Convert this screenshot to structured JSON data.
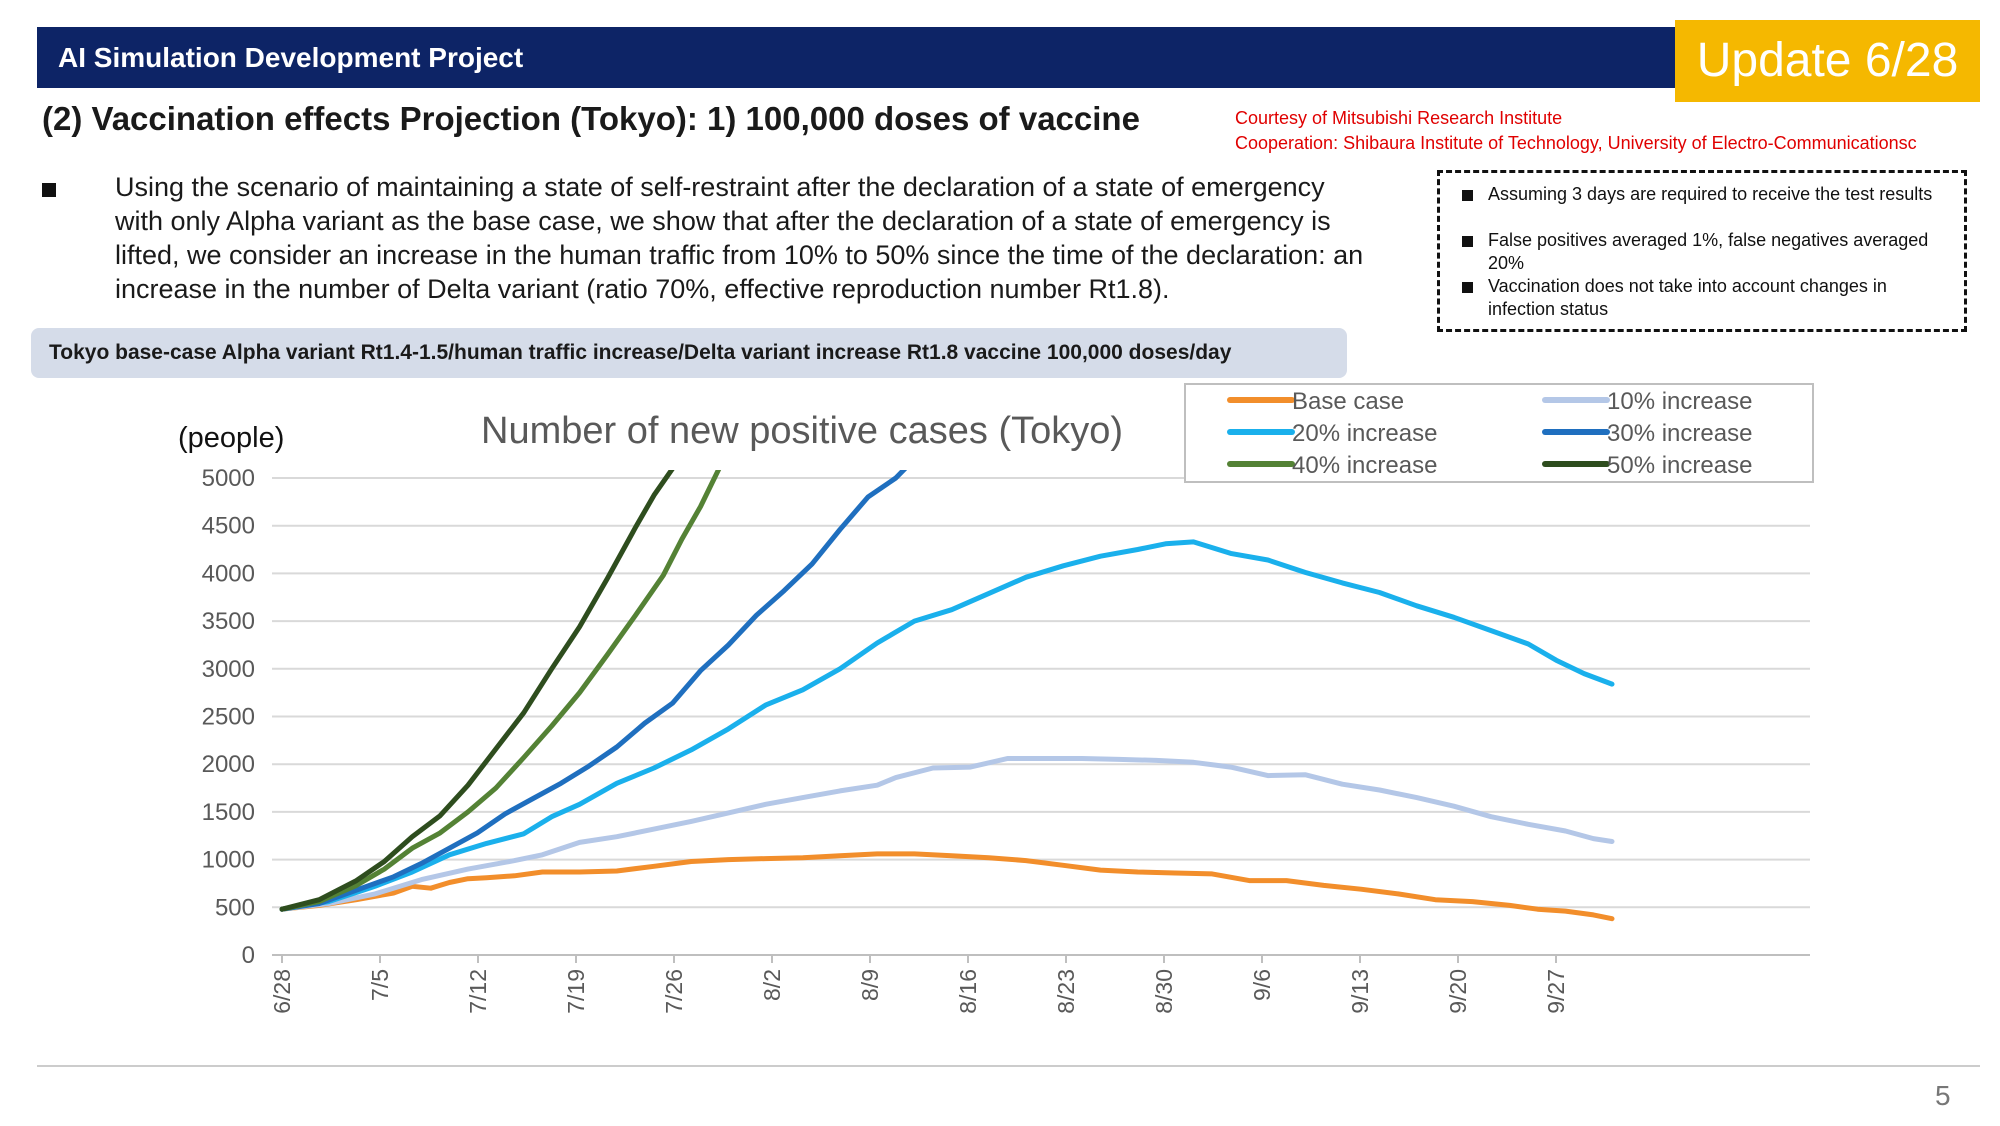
{
  "header": {
    "title": "AI Simulation Development Project",
    "update_badge": "Update 6/28"
  },
  "subtitle": "(2) Vaccination effects Projection (Tokyo): 1) 100,000 doses of vaccine",
  "credits": {
    "line1": "Courtesy of Mitsubishi Research Institute",
    "line2": "Cooperation: Shibaura Institute of Technology, University of Electro-Communicationsc"
  },
  "description": "Using the scenario of maintaining a state of self-restraint after the declaration of a state of emergency with only Alpha variant as the base case, we show that after the declaration of a state of emergency is lifted, we consider an increase in the human traffic from 10% to 50% since the time of the declaration: an increase in the number of Delta variant (ratio 70%, effective reproduction number Rt1.8).",
  "notes": [
    "Assuming 3 days are required to receive the test results",
    "False positives averaged 1%, false negatives averaged 20%",
    "Vaccination does not take into account changes in infection status"
  ],
  "scenario_label": "Tokyo base-case Alpha variant Rt1.4-1.5/human traffic increase/Delta variant increase Rt1.8 vaccine 100,000 doses/day",
  "page_number": "5",
  "chart_data": {
    "type": "line",
    "title": "Number of new positive cases (Tokyo)",
    "ylabel": "(people)",
    "xlabel": "",
    "ylim": [
      0,
      5000
    ],
    "yticks": [
      "0",
      "500",
      "1000",
      "1500",
      "2000",
      "2500",
      "3000",
      "3500",
      "4000",
      "4500",
      "5000"
    ],
    "x_tick_labels": [
      "6/28",
      "7/5",
      "7/12",
      "7/19",
      "7/26",
      "8/2",
      "8/9",
      "8/16",
      "8/23",
      "8/30",
      "9/6",
      "9/13",
      "9/20",
      "9/27"
    ],
    "x_start_day": 0,
    "x_end_day": 95,
    "grid": true,
    "legend_position": "top-right",
    "series": [
      {
        "name": "Base case",
        "color": "#f28e2b",
        "points": [
          [
            0,
            480
          ],
          [
            4,
            520
          ],
          [
            8,
            580
          ],
          [
            12,
            650
          ],
          [
            14,
            720
          ],
          [
            16,
            700
          ],
          [
            18,
            760
          ],
          [
            20,
            800
          ],
          [
            22,
            810
          ],
          [
            25,
            830
          ],
          [
            28,
            870
          ],
          [
            32,
            870
          ],
          [
            36,
            880
          ],
          [
            40,
            930
          ],
          [
            44,
            980
          ],
          [
            48,
            1000
          ],
          [
            52,
            1010
          ],
          [
            56,
            1020
          ],
          [
            60,
            1040
          ],
          [
            64,
            1060
          ],
          [
            68,
            1060
          ],
          [
            72,
            1040
          ],
          [
            76,
            1020
          ],
          [
            80,
            990
          ],
          [
            84,
            940
          ],
          [
            88,
            890
          ],
          [
            92,
            870
          ],
          [
            96,
            860
          ],
          [
            100,
            850
          ],
          [
            104,
            780
          ],
          [
            108,
            780
          ],
          [
            112,
            730
          ],
          [
            116,
            690
          ],
          [
            120,
            640
          ],
          [
            124,
            580
          ],
          [
            128,
            560
          ],
          [
            132,
            520
          ],
          [
            135,
            480
          ],
          [
            138,
            460
          ],
          [
            141,
            420
          ],
          [
            143,
            380
          ]
        ]
      },
      {
        "name": "10% increase",
        "color": "#b4c7e7",
        "points": [
          [
            0,
            480
          ],
          [
            5,
            540
          ],
          [
            10,
            640
          ],
          [
            15,
            790
          ],
          [
            20,
            900
          ],
          [
            25,
            990
          ],
          [
            28,
            1050
          ],
          [
            32,
            1180
          ],
          [
            36,
            1240
          ],
          [
            40,
            1320
          ],
          [
            44,
            1400
          ],
          [
            48,
            1490
          ],
          [
            52,
            1580
          ],
          [
            56,
            1650
          ],
          [
            60,
            1720
          ],
          [
            64,
            1780
          ],
          [
            66,
            1860
          ],
          [
            70,
            1960
          ],
          [
            74,
            1970
          ],
          [
            78,
            2060
          ],
          [
            82,
            2060
          ],
          [
            86,
            2060
          ],
          [
            90,
            2050
          ],
          [
            94,
            2040
          ],
          [
            98,
            2020
          ],
          [
            102,
            1970
          ],
          [
            106,
            1880
          ],
          [
            110,
            1890
          ],
          [
            114,
            1790
          ],
          [
            118,
            1730
          ],
          [
            122,
            1650
          ],
          [
            126,
            1560
          ],
          [
            130,
            1450
          ],
          [
            134,
            1370
          ],
          [
            138,
            1300
          ],
          [
            141,
            1220
          ],
          [
            143,
            1190
          ]
        ]
      },
      {
        "name": "20% increase",
        "color": "#1ab0ec",
        "points": [
          [
            0,
            480
          ],
          [
            5,
            560
          ],
          [
            10,
            720
          ],
          [
            14,
            870
          ],
          [
            18,
            1050
          ],
          [
            22,
            1170
          ],
          [
            26,
            1270
          ],
          [
            29,
            1450
          ],
          [
            32,
            1580
          ],
          [
            36,
            1800
          ],
          [
            40,
            1960
          ],
          [
            44,
            2150
          ],
          [
            48,
            2370
          ],
          [
            52,
            2620
          ],
          [
            56,
            2780
          ],
          [
            60,
            3000
          ],
          [
            64,
            3270
          ],
          [
            68,
            3500
          ],
          [
            72,
            3620
          ],
          [
            76,
            3790
          ],
          [
            80,
            3960
          ],
          [
            84,
            4080
          ],
          [
            88,
            4180
          ],
          [
            92,
            4250
          ],
          [
            95,
            4310
          ],
          [
            98,
            4330
          ],
          [
            102,
            4210
          ],
          [
            106,
            4140
          ],
          [
            110,
            4010
          ],
          [
            114,
            3900
          ],
          [
            118,
            3800
          ],
          [
            122,
            3660
          ],
          [
            126,
            3540
          ],
          [
            130,
            3400
          ],
          [
            134,
            3260
          ],
          [
            137,
            3090
          ],
          [
            140,
            2950
          ],
          [
            143,
            2840
          ]
        ]
      },
      {
        "name": "30% increase",
        "color": "#1f6fbf",
        "points": [
          [
            0,
            480
          ],
          [
            4,
            540
          ],
          [
            8,
            680
          ],
          [
            12,
            820
          ],
          [
            15,
            960
          ],
          [
            18,
            1120
          ],
          [
            21,
            1280
          ],
          [
            24,
            1480
          ],
          [
            27,
            1640
          ],
          [
            30,
            1800
          ],
          [
            33,
            1980
          ],
          [
            36,
            2180
          ],
          [
            39,
            2430
          ],
          [
            42,
            2640
          ],
          [
            45,
            2980
          ],
          [
            48,
            3250
          ],
          [
            51,
            3560
          ],
          [
            54,
            3820
          ],
          [
            57,
            4100
          ],
          [
            60,
            4460
          ],
          [
            63,
            4800
          ],
          [
            66,
            5000
          ],
          [
            67,
            5100
          ]
        ]
      },
      {
        "name": "40% increase",
        "color": "#548235",
        "points": [
          [
            0,
            480
          ],
          [
            4,
            560
          ],
          [
            8,
            730
          ],
          [
            11,
            900
          ],
          [
            14,
            1120
          ],
          [
            17,
            1280
          ],
          [
            20,
            1500
          ],
          [
            23,
            1750
          ],
          [
            26,
            2070
          ],
          [
            29,
            2400
          ],
          [
            32,
            2750
          ],
          [
            35,
            3150
          ],
          [
            38,
            3560
          ],
          [
            41,
            3980
          ],
          [
            43,
            4360
          ],
          [
            45,
            4700
          ],
          [
            47,
            5100
          ]
        ]
      },
      {
        "name": "50% increase",
        "color": "#2e4d1e",
        "points": [
          [
            0,
            480
          ],
          [
            4,
            580
          ],
          [
            8,
            780
          ],
          [
            11,
            980
          ],
          [
            14,
            1240
          ],
          [
            17,
            1460
          ],
          [
            20,
            1780
          ],
          [
            23,
            2160
          ],
          [
            26,
            2540
          ],
          [
            29,
            3000
          ],
          [
            32,
            3440
          ],
          [
            35,
            3950
          ],
          [
            38,
            4480
          ],
          [
            40,
            4820
          ],
          [
            42,
            5100
          ]
        ]
      }
    ]
  }
}
